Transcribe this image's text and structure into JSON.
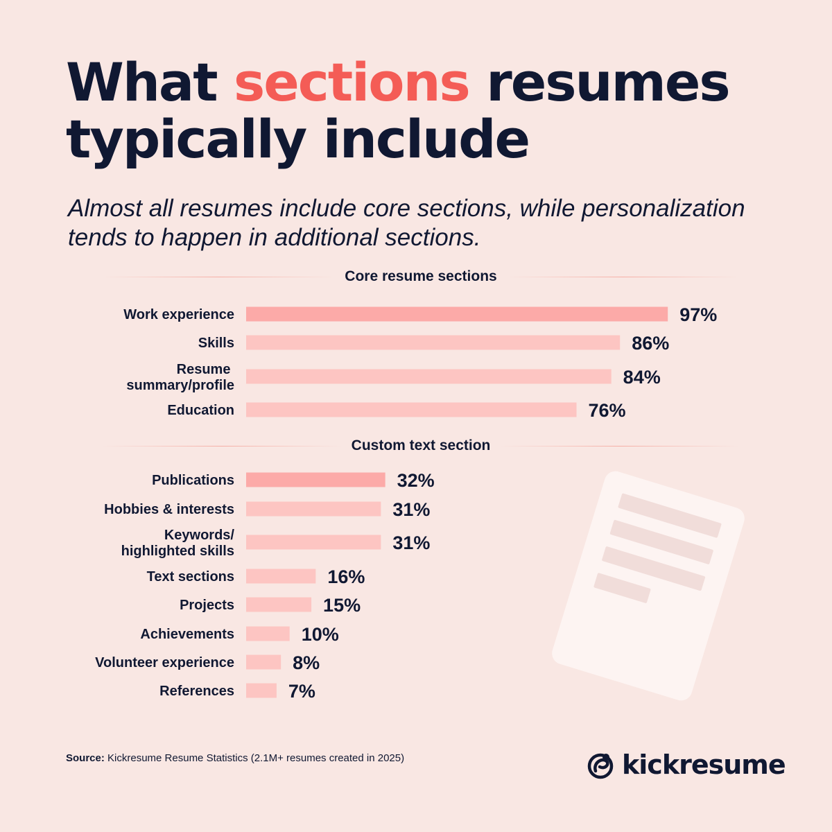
{
  "header": {
    "title_pre": "What ",
    "title_accent": "sections",
    "title_post": " resumes typically include",
    "subtitle": "Almost all resumes include core sections, while personalization tends to happen in additional sections."
  },
  "colors": {
    "background": "#f9e7e3",
    "text": "#101832",
    "accent": "#f45c56",
    "bar_highlight": "#fcaaa8",
    "bar_default": "#fdc5c2"
  },
  "chart_data": {
    "type": "bar",
    "orientation": "horizontal",
    "xlim": [
      0,
      100
    ],
    "groups": [
      {
        "name": "Core resume sections",
        "categories": [
          "Work experience",
          "Skills",
          "Resume summary/profile",
          "Education"
        ],
        "values": [
          97,
          86,
          84,
          76
        ],
        "value_labels": [
          "97%",
          "86%",
          "84%",
          "76%"
        ],
        "highlight": [
          true,
          false,
          false,
          false
        ]
      },
      {
        "name": "Custom text section",
        "categories": [
          "Publications",
          "Hobbies & interests",
          "Keywords/ highlighted skills",
          "Text sections",
          "Projects",
          "Achievements",
          "Volunteer experience",
          "References"
        ],
        "values": [
          32,
          31,
          31,
          16,
          15,
          10,
          8,
          7
        ],
        "value_labels": [
          "32%",
          "31%",
          "31%",
          "16%",
          "15%",
          "10%",
          "8%",
          "7%"
        ],
        "highlight": [
          true,
          false,
          false,
          false,
          false,
          false,
          false,
          false
        ]
      }
    ]
  },
  "footer": {
    "source_label": "Source:",
    "source_text": " Kickresume Resume Statistics (2.1M+ resumes created in 2025)",
    "brand": "kickresume",
    "brand_icon": "kickresume-logo-icon"
  }
}
